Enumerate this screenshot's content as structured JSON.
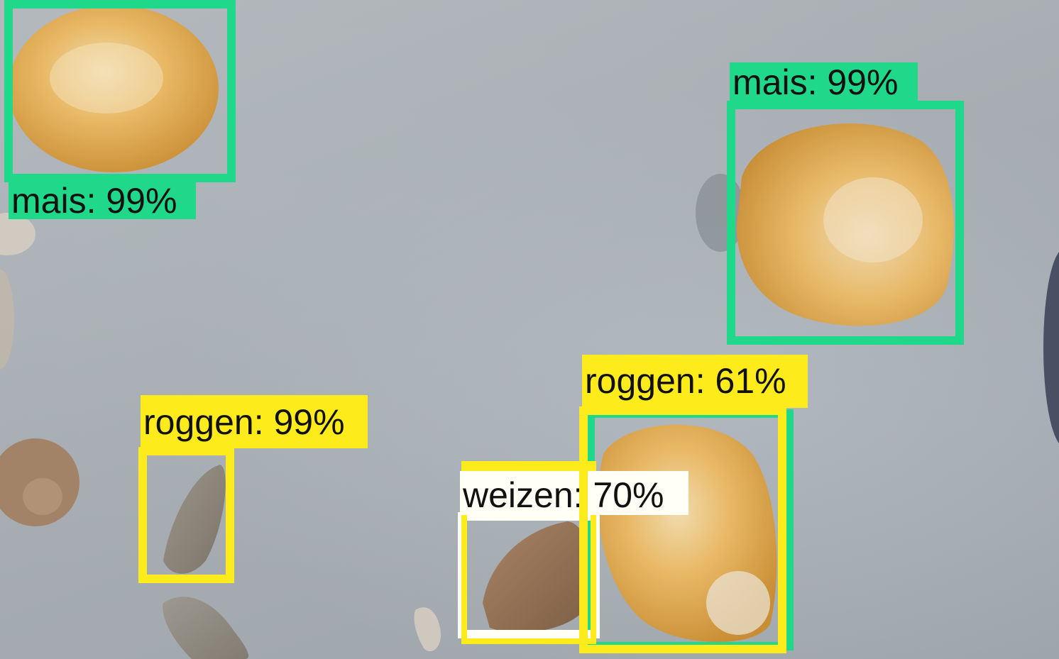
{
  "detections": [
    {
      "label": "mais: 99%",
      "class": "mais",
      "score_percent": 99,
      "color": "#1fd88a"
    },
    {
      "label": "mais: 99%",
      "class": "mais",
      "score_percent": 99,
      "color": "#1fd88a"
    },
    {
      "label": "roggen: 99%",
      "class": "roggen",
      "score_percent": 99,
      "color": "#fdeb1c"
    },
    {
      "label": "roggen: 61%",
      "class": "roggen",
      "score_percent": 61,
      "color": "#fdeb1c"
    },
    {
      "label": "weizen: 70%",
      "class": "weizen",
      "score_percent": 70,
      "color": "#fffff5"
    }
  ],
  "colors": {
    "mais": "#1fd88a",
    "roggen": "#fdeb1c",
    "weizen": "#fffff5",
    "background": "#a6acb1"
  }
}
